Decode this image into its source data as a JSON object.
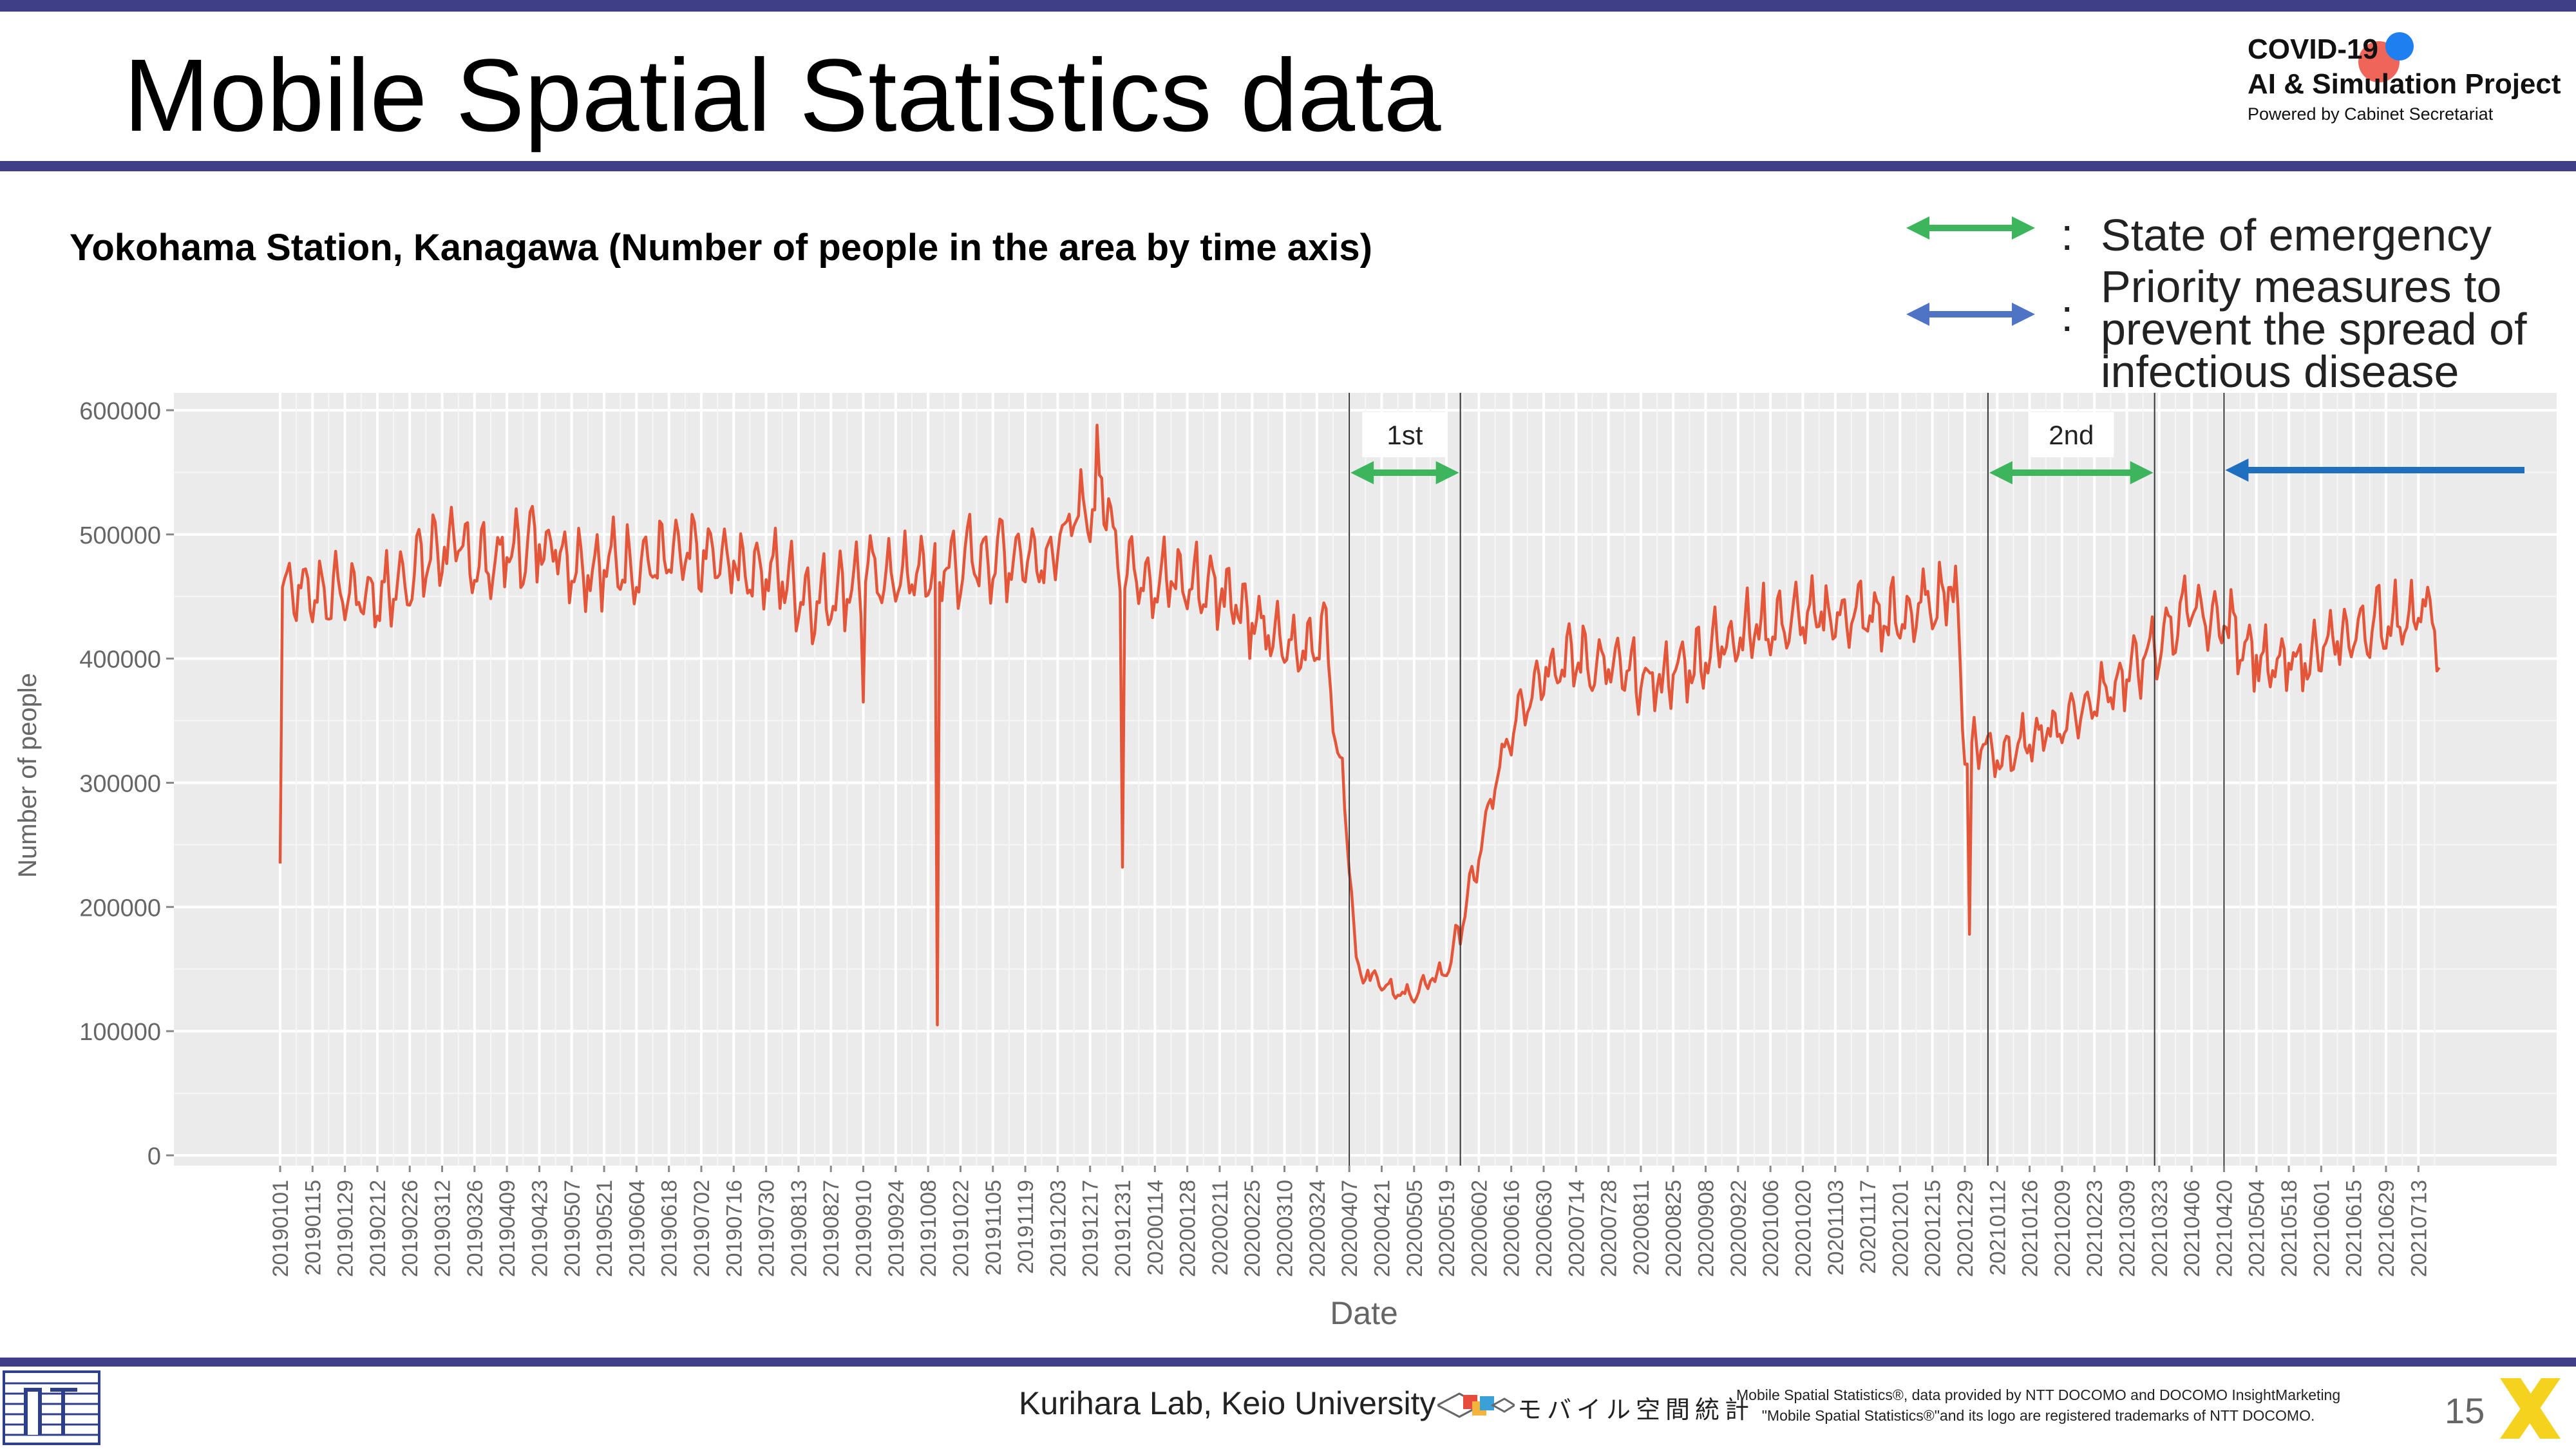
{
  "slide": {
    "title": "Mobile Spatial Statistics data",
    "subtitle": "Yokohama Station, Kanagawa (Number of people in the area by time axis)",
    "page_number": "15"
  },
  "logo": {
    "line1": "COVID-19",
    "line2": "AI & Simulation Project",
    "line3": "Powered by Cabinet Secretariat"
  },
  "legend": {
    "items": [
      {
        "colon": ":",
        "text": "State of emergency",
        "color": "#3cb55c"
      },
      {
        "colon": ":",
        "lines": [
          "Priority measures to",
          "prevent the spread of",
          "infectious disease"
        ],
        "color": "#4f74c6"
      }
    ]
  },
  "footer": {
    "lab": "Kurihara Lab, Keio University",
    "docomo_logo_text": "モバイル空間統計",
    "notice_line1": "Mobile Spatial Statistics®, data provided by NTT DOCOMO and DOCOMO InsightMarketing",
    "notice_line2": "\"Mobile Spatial Statistics®\"and its logo are registered trademarks of NTT DOCOMO."
  },
  "colors": {
    "brand": "#3e3f86",
    "series": "#e4563a",
    "emergency": "#3cb55c",
    "priority": "#1f6fc0",
    "panel": "#ebebeb"
  },
  "chart_data": {
    "type": "line",
    "xlabel": "Date",
    "ylabel": "Number of people",
    "ylim": [
      0,
      620000
    ],
    "yticks": [
      0,
      100000,
      200000,
      300000,
      400000,
      500000,
      600000
    ],
    "ytick_labels": [
      "0",
      "100000",
      "200000",
      "300000",
      "400000",
      "500000",
      "600000"
    ],
    "x_tick_labels": [
      "20190101",
      "20190115",
      "20190129",
      "20190212",
      "20190226",
      "20190312",
      "20190326",
      "20190409",
      "20190423",
      "20190507",
      "20190521",
      "20190604",
      "20190618",
      "20190702",
      "20190716",
      "20190730",
      "20190813",
      "20190827",
      "20190910",
      "20190924",
      "20191008",
      "20191022",
      "20191105",
      "20191119",
      "20191203",
      "20191217",
      "20191231",
      "20200114",
      "20200128",
      "20200211",
      "20200225",
      "20200310",
      "20200324",
      "20200407",
      "20200421",
      "20200505",
      "20200519",
      "20200602",
      "20200616",
      "20200630",
      "20200714",
      "20200728",
      "20200811",
      "20200825",
      "20200908",
      "20200922",
      "20201006",
      "20201020",
      "20201103",
      "20201117",
      "20201201",
      "20201215",
      "20201229",
      "20210112",
      "20210126",
      "20210209",
      "20210223",
      "20210309",
      "20210323",
      "20210406",
      "20210420",
      "20210504",
      "20210518",
      "20210601",
      "20210615",
      "20210629",
      "20210713"
    ],
    "x_range": [
      "2019-01-01",
      "2021-07-26"
    ],
    "grid": true,
    "series": [
      {
        "keypoints": [
          [
            "2019-01-01",
            235000
          ],
          [
            "2019-01-02",
            460000
          ],
          [
            "2019-01-08",
            450000
          ],
          [
            "2019-02-15",
            445000
          ],
          [
            "2019-03-12",
            485000
          ],
          [
            "2019-04-01",
            470000
          ],
          [
            "2019-04-25",
            490000
          ],
          [
            "2019-05-10",
            470000
          ],
          [
            "2019-06-01",
            470000
          ],
          [
            "2019-07-01",
            475000
          ],
          [
            "2019-08-01",
            465000
          ],
          [
            "2019-08-20",
            440000
          ],
          [
            "2019-09-10",
            460000
          ],
          [
            "2019-10-01",
            460000
          ],
          [
            "2019-10-11",
            465000
          ],
          [
            "2019-11-01",
            475000
          ],
          [
            "2019-12-01",
            480000
          ],
          [
            "2019-12-15",
            515000
          ],
          [
            "2019-12-25",
            525000
          ],
          [
            "2019-12-28",
            480000
          ],
          [
            "2020-01-05",
            465000
          ],
          [
            "2020-01-25",
            455000
          ],
          [
            "2020-02-15",
            450000
          ],
          [
            "2020-03-01",
            415000
          ],
          [
            "2020-03-15",
            400000
          ],
          [
            "2020-03-28",
            420000
          ],
          [
            "2020-04-01",
            330000
          ],
          [
            "2020-04-06",
            270000
          ],
          [
            "2020-04-10",
            150000
          ],
          [
            "2020-04-20",
            140000
          ],
          [
            "2020-05-01",
            125000
          ],
          [
            "2020-05-10",
            135000
          ],
          [
            "2020-05-20",
            150000
          ],
          [
            "2020-05-30",
            215000
          ],
          [
            "2020-06-10",
            300000
          ],
          [
            "2020-06-20",
            360000
          ],
          [
            "2020-07-01",
            390000
          ],
          [
            "2020-07-15",
            395000
          ],
          [
            "2020-08-01",
            385000
          ],
          [
            "2020-08-15",
            375000
          ],
          [
            "2020-09-01",
            390000
          ],
          [
            "2020-09-20",
            415000
          ],
          [
            "2020-10-15",
            425000
          ],
          [
            "2020-11-10",
            430000
          ],
          [
            "2020-12-01",
            425000
          ],
          [
            "2020-12-15",
            440000
          ],
          [
            "2020-12-25",
            455000
          ],
          [
            "2020-12-29",
            320000
          ],
          [
            "2021-01-05",
            330000
          ],
          [
            "2021-01-12",
            320000
          ],
          [
            "2021-01-25",
            325000
          ],
          [
            "2021-02-10",
            345000
          ],
          [
            "2021-03-01",
            370000
          ],
          [
            "2021-03-20",
            400000
          ],
          [
            "2021-04-01",
            430000
          ],
          [
            "2021-04-20",
            425000
          ],
          [
            "2021-05-01",
            405000
          ],
          [
            "2021-05-10",
            385000
          ],
          [
            "2021-06-01",
            400000
          ],
          [
            "2021-06-20",
            420000
          ],
          [
            "2021-07-10",
            430000
          ],
          [
            "2021-07-20",
            430000
          ],
          [
            "2021-07-22",
            380000
          ]
        ],
        "weekly_amplitude": 45000,
        "outliers": [
          [
            "2019-01-01",
            235000
          ],
          [
            "2019-09-10",
            365000
          ],
          [
            "2019-10-12",
            105000
          ],
          [
            "2019-12-20",
            588000
          ],
          [
            "2019-12-31",
            232000
          ],
          [
            "2020-12-31",
            178000
          ]
        ]
      }
    ],
    "annotations": [
      {
        "label": "1st",
        "start": "2020-04-07",
        "end": "2020-05-25",
        "kind": "emergency"
      },
      {
        "label": "2nd",
        "start": "2021-01-08",
        "end": "2021-03-21",
        "kind": "emergency"
      },
      {
        "label": "",
        "start": "2021-04-20",
        "end": "2021-07-26",
        "kind": "priority"
      }
    ]
  }
}
